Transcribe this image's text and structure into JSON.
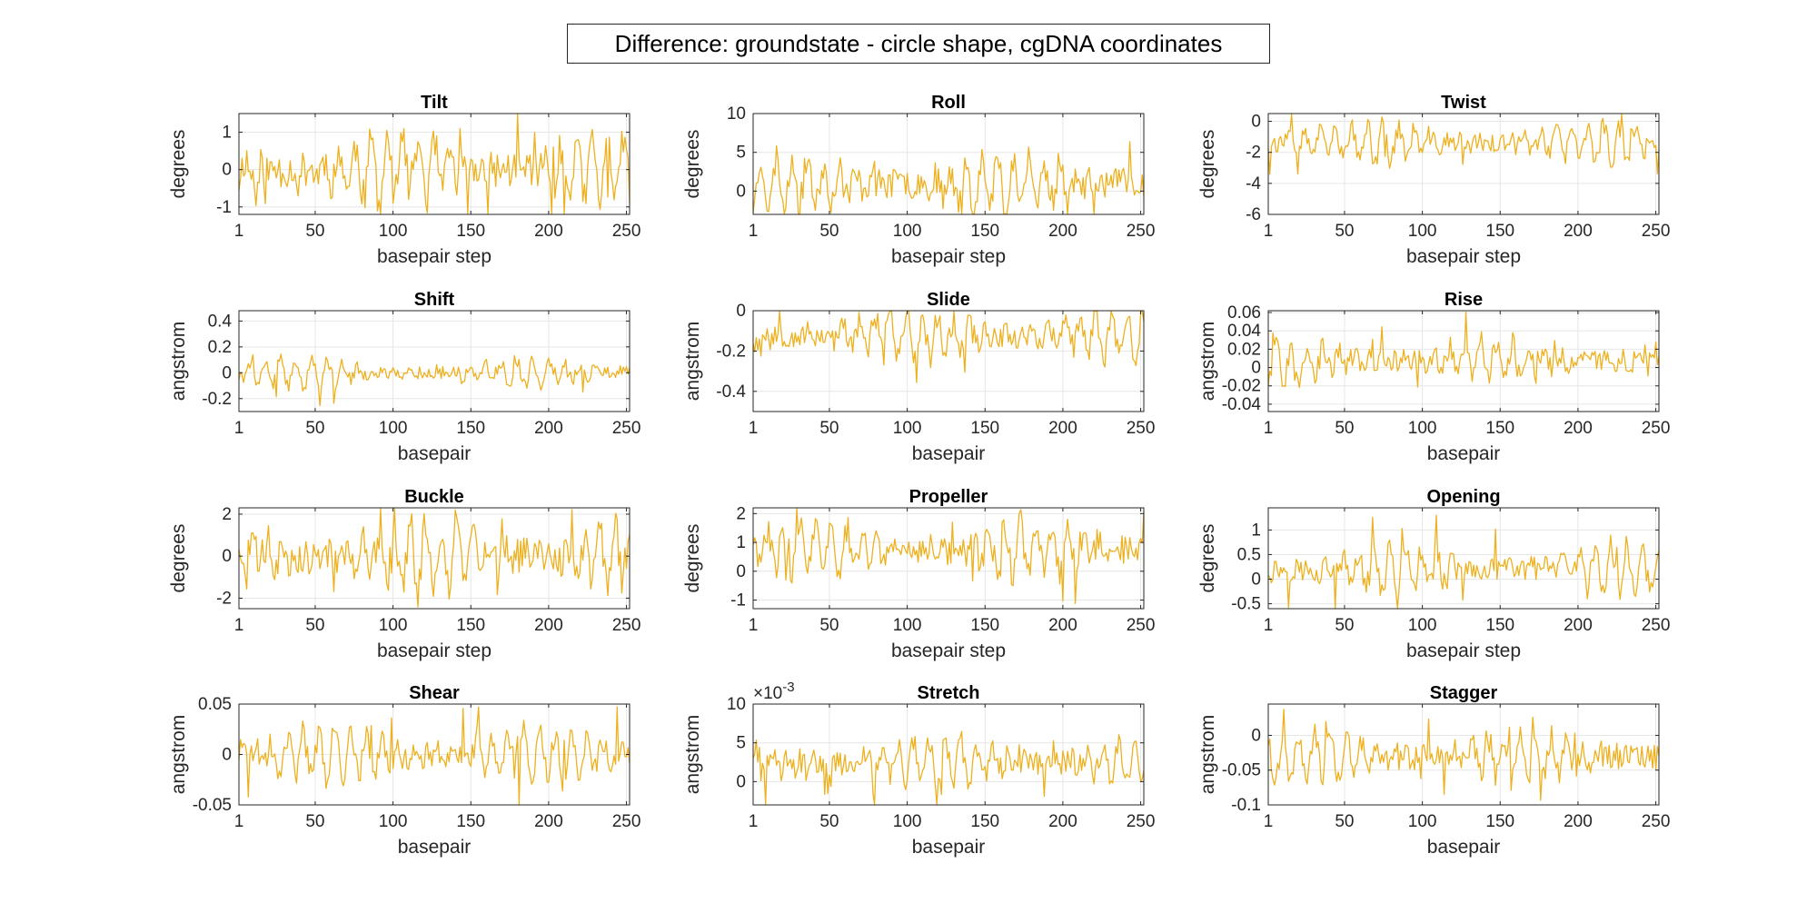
{
  "figure": {
    "title": "Difference: groundstate - circle shape, cgDNA coordinates"
  },
  "chart_data": [
    {
      "type": "line",
      "title": "Tilt",
      "xlabel": "basepair step",
      "ylabel": "degrees",
      "xlim": [
        1,
        252
      ],
      "ylim": [
        -1.2,
        1.5
      ],
      "xticks": [
        "1",
        "50",
        "100",
        "150",
        "200",
        "250"
      ],
      "yticks": [
        [
          "-1",
          -1
        ],
        [
          "0",
          0
        ],
        [
          "1",
          1
        ]
      ],
      "seed": 11,
      "base": 0,
      "amp": 0.9,
      "series_color": "#EDB120"
    },
    {
      "type": "line",
      "title": "Roll",
      "xlabel": "basepair step",
      "ylabel": "degrees",
      "xlim": [
        1,
        252
      ],
      "ylim": [
        -3,
        10
      ],
      "xticks": [
        "1",
        "50",
        "100",
        "150",
        "200",
        "250"
      ],
      "yticks": [
        [
          "0",
          0
        ],
        [
          "5",
          5
        ],
        [
          "10",
          10
        ]
      ],
      "seed": 23,
      "base": 1,
      "amp": 3.5,
      "series_color": "#EDB120"
    },
    {
      "type": "line",
      "title": "Twist",
      "xlabel": "basepair step",
      "ylabel": "degrees",
      "xlim": [
        1,
        252
      ],
      "ylim": [
        -6,
        0.5
      ],
      "xticks": [
        "1",
        "50",
        "100",
        "150",
        "200",
        "250"
      ],
      "yticks": [
        [
          "-6",
          -6
        ],
        [
          "-4",
          -4
        ],
        [
          "-2",
          -2
        ],
        [
          "0",
          0
        ]
      ],
      "seed": 37,
      "base": -1.4,
      "amp": 1.2,
      "series_color": "#EDB120"
    },
    {
      "type": "line",
      "title": "Shift",
      "xlabel": "basepair",
      "ylabel": "angstrom",
      "xlim": [
        1,
        252
      ],
      "ylim": [
        -0.3,
        0.48
      ],
      "xticks": [
        "1",
        "50",
        "100",
        "150",
        "200",
        "250"
      ],
      "yticks": [
        [
          "-0.2",
          -0.2
        ],
        [
          "0",
          0
        ],
        [
          "0.2",
          0.2
        ],
        [
          "0.4",
          0.4
        ]
      ],
      "seed": 41,
      "base": 0,
      "amp": 0.1,
      "series_color": "#EDB120"
    },
    {
      "type": "line",
      "title": "Slide",
      "xlabel": "basepair",
      "ylabel": "angstrom",
      "xlim": [
        1,
        252
      ],
      "ylim": [
        -0.5,
        0
      ],
      "xticks": [
        "1",
        "50",
        "100",
        "150",
        "200",
        "250"
      ],
      "yticks": [
        [
          "-0.4",
          -0.4
        ],
        [
          "-0.2",
          -0.2
        ],
        [
          "0",
          0
        ]
      ],
      "seed": 53,
      "base": -0.12,
      "amp": 0.12,
      "series_color": "#EDB120"
    },
    {
      "type": "line",
      "title": "Rise",
      "xlabel": "basepair",
      "ylabel": "angstrom",
      "xlim": [
        1,
        252
      ],
      "ylim": [
        -0.048,
        0.062
      ],
      "xticks": [
        "1",
        "50",
        "100",
        "150",
        "200",
        "250"
      ],
      "yticks": [
        [
          "-0.04",
          -0.04
        ],
        [
          "-0.02",
          -0.02
        ],
        [
          "0",
          0
        ],
        [
          "0.02",
          0.02
        ],
        [
          "0.04",
          0.04
        ],
        [
          "0.06",
          0.06
        ]
      ],
      "seed": 67,
      "base": 0.008,
      "amp": 0.022,
      "series_color": "#EDB120"
    },
    {
      "type": "line",
      "title": "Buckle",
      "xlabel": "basepair step",
      "ylabel": "degrees",
      "xlim": [
        1,
        252
      ],
      "ylim": [
        -2.5,
        2.3
      ],
      "xticks": [
        "1",
        "50",
        "100",
        "150",
        "200",
        "250"
      ],
      "yticks": [
        [
          "-2",
          -2
        ],
        [
          "0",
          0
        ],
        [
          "2",
          2
        ]
      ],
      "seed": 71,
      "base": 0,
      "amp": 1.6,
      "series_color": "#EDB120"
    },
    {
      "type": "line",
      "title": "Propeller",
      "xlabel": "basepair step",
      "ylabel": "degrees",
      "xlim": [
        1,
        252
      ],
      "ylim": [
        -1.3,
        2.2
      ],
      "xticks": [
        "1",
        "50",
        "100",
        "150",
        "200",
        "250"
      ],
      "yticks": [
        [
          "-1",
          -1
        ],
        [
          "0",
          0
        ],
        [
          "1",
          1
        ],
        [
          "2",
          2
        ]
      ],
      "seed": 83,
      "base": 0.8,
      "amp": 0.9,
      "series_color": "#EDB120"
    },
    {
      "type": "line",
      "title": "Opening",
      "xlabel": "basepair step",
      "ylabel": "degrees",
      "xlim": [
        1,
        252
      ],
      "ylim": [
        -0.6,
        1.45
      ],
      "xticks": [
        "1",
        "50",
        "100",
        "150",
        "200",
        "250"
      ],
      "yticks": [
        [
          "-0.5",
          -0.5
        ],
        [
          "0",
          0
        ],
        [
          "0.5",
          0.5
        ],
        [
          "1",
          1
        ]
      ],
      "seed": 97,
      "base": 0.2,
      "amp": 0.45,
      "series_color": "#EDB120"
    },
    {
      "type": "line",
      "title": "Shear",
      "xlabel": "basepair",
      "ylabel": "angstrom",
      "xlim": [
        1,
        252
      ],
      "ylim": [
        -0.05,
        0.05
      ],
      "xticks": [
        "1",
        "50",
        "100",
        "150",
        "200",
        "250"
      ],
      "yticks": [
        [
          "-0.05",
          -0.05
        ],
        [
          "0",
          0
        ],
        [
          "0.05",
          0.05
        ]
      ],
      "seed": 101,
      "base": 0,
      "amp": 0.025,
      "series_color": "#EDB120"
    },
    {
      "type": "line",
      "title": "Stretch",
      "xlabel": "basepair",
      "ylabel": "angstrom",
      "exponent_label": "×10",
      "exponent_power": "-3",
      "xlim": [
        1,
        252
      ],
      "ylim": [
        -3,
        10
      ],
      "xticks": [
        "1",
        "50",
        "100",
        "150",
        "200",
        "250"
      ],
      "yticks": [
        [
          "0",
          0
        ],
        [
          "5",
          5
        ],
        [
          "10",
          10
        ]
      ],
      "seed": 113,
      "base": 2.5,
      "amp": 3,
      "series_color": "#EDB120"
    },
    {
      "type": "line",
      "title": "Stagger",
      "xlabel": "basepair",
      "ylabel": "angstrom",
      "xlim": [
        1,
        252
      ],
      "ylim": [
        -0.1,
        0.045
      ],
      "xticks": [
        "1",
        "50",
        "100",
        "150",
        "200",
        "250"
      ],
      "yticks": [
        [
          "-0.1",
          -0.1
        ],
        [
          "-0.05",
          -0.05
        ],
        [
          "0",
          0
        ]
      ],
      "seed": 127,
      "base": -0.03,
      "amp": 0.035,
      "series_color": "#EDB120"
    }
  ]
}
